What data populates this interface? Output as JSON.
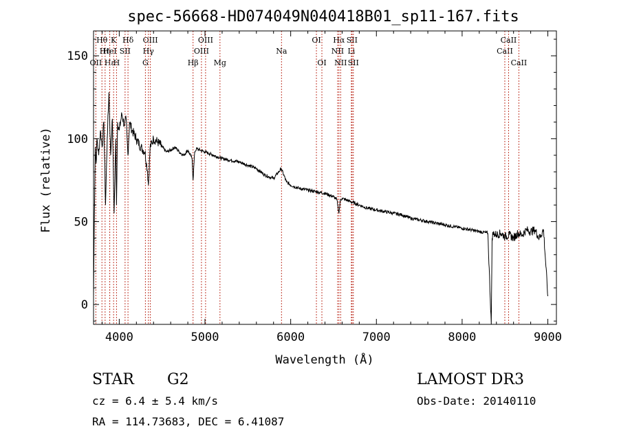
{
  "chart_data": {
    "type": "line",
    "title": "spec-56668-HD074049N040418B01_sp11-167.fits",
    "xlabel": "Wavelength (Å)",
    "ylabel": "Flux (relative)",
    "xlim": [
      3700,
      9100
    ],
    "ylim": [
      -12,
      165
    ],
    "xticks": [
      4000,
      5000,
      6000,
      7000,
      8000,
      9000
    ],
    "yticks": [
      0,
      50,
      100,
      150
    ],
    "series": [
      {
        "name": "flux",
        "x": [
          3700,
          3710,
          3720,
          3730,
          3740,
          3760,
          3780,
          3800,
          3820,
          3840,
          3860,
          3880,
          3900,
          3920,
          3940,
          3960,
          3968,
          3980,
          4000,
          4030,
          4060,
          4080,
          4101,
          4120,
          4150,
          4200,
          4250,
          4300,
          4330,
          4340,
          4360,
          4400,
          4450,
          4500,
          4550,
          4600,
          4650,
          4700,
          4750,
          4800,
          4850,
          4861,
          4880,
          4900,
          4950,
          5000,
          5050,
          5100,
          5150,
          5200,
          5300,
          5400,
          5500,
          5600,
          5700,
          5800,
          5890,
          5950,
          6000,
          6100,
          6200,
          6300,
          6400,
          6500,
          6540,
          6563,
          6580,
          6600,
          6700,
          6800,
          6900,
          7000,
          7100,
          7200,
          7300,
          7400,
          7500,
          7600,
          7700,
          7800,
          7900,
          8000,
          8100,
          8200,
          8300,
          8340,
          8350,
          8360,
          8400,
          8450,
          8500,
          8550,
          8600,
          8650,
          8700,
          8750,
          8800,
          8850,
          8900,
          8950,
          9000
        ],
        "y": [
          5,
          55,
          95,
          85,
          100,
          90,
          105,
          95,
          110,
          60,
          100,
          128,
          90,
          112,
          55,
          100,
          60,
          110,
          105,
          115,
          108,
          112,
          90,
          110,
          105,
          100,
          95,
          92,
          80,
          72,
          95,
          100,
          98,
          95,
          92,
          93,
          95,
          92,
          90,
          93,
          88,
          75,
          92,
          94,
          93,
          92,
          91,
          90,
          89,
          88,
          87,
          86,
          84,
          82,
          78,
          76,
          82,
          74,
          72,
          70,
          69,
          68,
          67,
          65,
          63,
          55,
          63,
          64,
          62,
          60,
          58,
          57,
          56,
          55,
          54,
          52,
          51,
          50,
          49,
          48,
          47,
          46,
          45,
          44,
          43,
          -12,
          40,
          43,
          42,
          43,
          41,
          42,
          40,
          43,
          42,
          45,
          44,
          45,
          40,
          45,
          5
        ]
      }
    ],
    "lines": [
      {
        "name": "Hθ",
        "wl": 3798,
        "row": 1
      },
      {
        "name": "OII",
        "wl": 3727,
        "row": 3
      },
      {
        "name": "Hη",
        "wl": 3835,
        "row": 2
      },
      {
        "name": "Hε",
        "wl": 3889,
        "row": 3
      },
      {
        "name": "HeI",
        "wl": 3889,
        "row": 2
      },
      {
        "name": "K",
        "wl": 3934,
        "row": 1
      },
      {
        "name": "H",
        "wl": 3968,
        "row": 3
      },
      {
        "name": "SII",
        "wl": 4068,
        "row": 2
      },
      {
        "name": "Hδ",
        "wl": 4102,
        "row": 1
      },
      {
        "name": "OIII",
        "wl": 4363,
        "row": 1
      },
      {
        "name": "Hγ",
        "wl": 4340,
        "row": 2
      },
      {
        "name": "G",
        "wl": 4305,
        "row": 3
      },
      {
        "name": "Hβ",
        "wl": 4861,
        "row": 3
      },
      {
        "name": "OIII",
        "wl": 4959,
        "row": 2
      },
      {
        "name": "OIII",
        "wl": 5007,
        "row": 1
      },
      {
        "name": "Mg",
        "wl": 5175,
        "row": 3
      },
      {
        "name": "Na",
        "wl": 5893,
        "row": 2
      },
      {
        "name": "OI",
        "wl": 6300,
        "row": 1
      },
      {
        "name": "OI",
        "wl": 6364,
        "row": 3
      },
      {
        "name": "Hα",
        "wl": 6563,
        "row": 1
      },
      {
        "name": "NII",
        "wl": 6548,
        "row": 2
      },
      {
        "name": "NII",
        "wl": 6583,
        "row": 3
      },
      {
        "name": "SII",
        "wl": 6716,
        "row": 1
      },
      {
        "name": "Li",
        "wl": 6708,
        "row": 2
      },
      {
        "name": "SII",
        "wl": 6731,
        "row": 3
      },
      {
        "name": "CaII",
        "wl": 8498,
        "row": 2
      },
      {
        "name": "CaII",
        "wl": 8542,
        "row": 1
      },
      {
        "name": "CaII",
        "wl": 8662,
        "row": 3
      }
    ]
  },
  "info": {
    "class": "STAR",
    "subclass": "G2",
    "survey": "LAMOST DR3",
    "cz": "cz = 6.4 ± 5.4 km/s",
    "obs_date": "Obs-Date: 20140110",
    "coords": "RA = 114.73683, DEC =   6.41087"
  },
  "colors": {
    "line_marker": "#c0392b",
    "spectrum": "#000000"
  }
}
